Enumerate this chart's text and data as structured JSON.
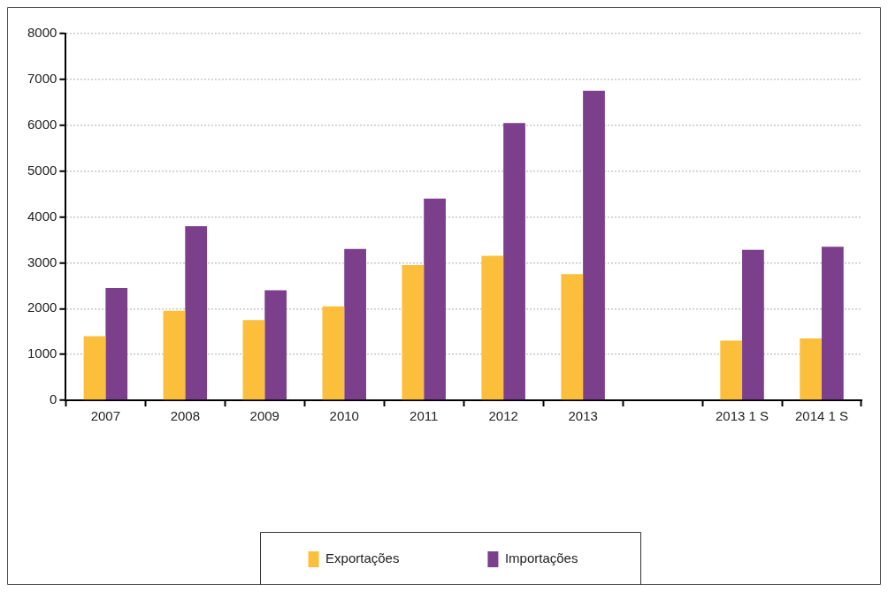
{
  "chart_data": {
    "type": "bar",
    "categories": [
      "2007",
      "2008",
      "2009",
      "2010",
      "2011",
      "2012",
      "2013",
      null,
      "2013 1 S",
      "2014 1 S"
    ],
    "series": [
      {
        "name": "Exportações",
        "color": "#fbbf3b",
        "values": [
          1400,
          1950,
          1750,
          2050,
          2950,
          3150,
          2750,
          null,
          1300,
          1350
        ]
      },
      {
        "name": "Importações",
        "color": "#7b3f8c",
        "values": [
          2450,
          3800,
          2400,
          3300,
          4400,
          6050,
          6750,
          null,
          3280,
          3350
        ]
      }
    ],
    "ylim": [
      0,
      8000
    ],
    "yticks": [
      0,
      1000,
      2000,
      3000,
      4000,
      5000,
      6000,
      7000,
      8000
    ],
    "grid": "y",
    "legend": "bottom"
  }
}
